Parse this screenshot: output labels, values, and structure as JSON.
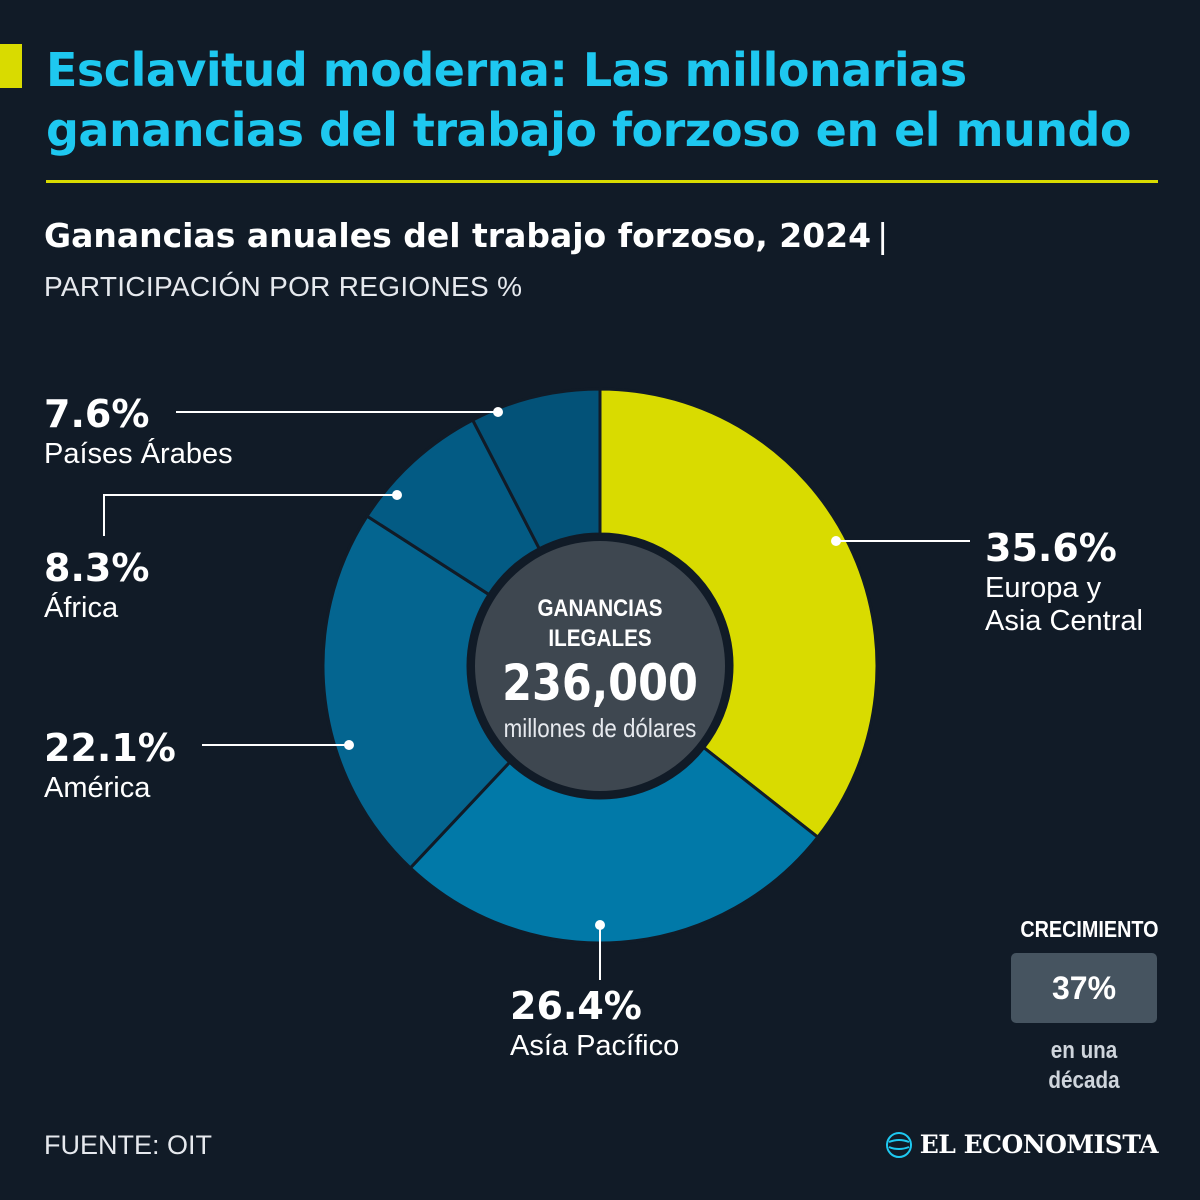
{
  "header": {
    "title": "Esclavitud moderna: Las millonarias ganancias del trabajo forzoso en el mundo",
    "subtitle": "Ganancias anuales del trabajo forzoso, 2024",
    "subtitle_sep": "|",
    "unit": "PARTICIPACIÓN POR REGIONES %"
  },
  "center": {
    "label": "GANANCIAS ILEGALES",
    "value": "236,000",
    "unit": "millones de dólares"
  },
  "growth": {
    "label": "CRECIMIENTO",
    "value": "37%",
    "sub": "en una década"
  },
  "footer": {
    "source": "FUENTE: OIT",
    "brand": "EL ECONOMISTA",
    "brand_icon": "globe-logo-icon"
  },
  "labels": {
    "europa": {
      "pct": "35.6%",
      "line1": "Europa y",
      "line2": "Asia Central"
    },
    "asia": {
      "pct": "26.4%",
      "name": "Asía Pacífico"
    },
    "america": {
      "pct": "22.1%",
      "name": "América"
    },
    "africa": {
      "pct": "8.3%",
      "name": "África"
    },
    "arabes": {
      "pct": "7.6%",
      "name": "Países Árabes"
    }
  },
  "colors": {
    "background": "#111b27",
    "title": "#1ec8f0",
    "accent": "#d9db00",
    "hole": "#3e4750"
  },
  "chart_data": {
    "type": "pie",
    "title": "Ganancias anuales del trabajo forzoso, 2024",
    "unit": "%",
    "categories": [
      "Europa y Asia Central",
      "Asía Pacífico",
      "América",
      "África",
      "Países Árabes"
    ],
    "values": [
      35.6,
      26.4,
      22.1,
      8.3,
      7.6
    ],
    "colors": [
      "#d9db00",
      "#0179a8",
      "#046590",
      "#035b84",
      "#035278"
    ],
    "donut": true,
    "start": "top, clockwise",
    "center_text": "GANANCIAS ILEGALES 236,000 millones de dólares"
  }
}
